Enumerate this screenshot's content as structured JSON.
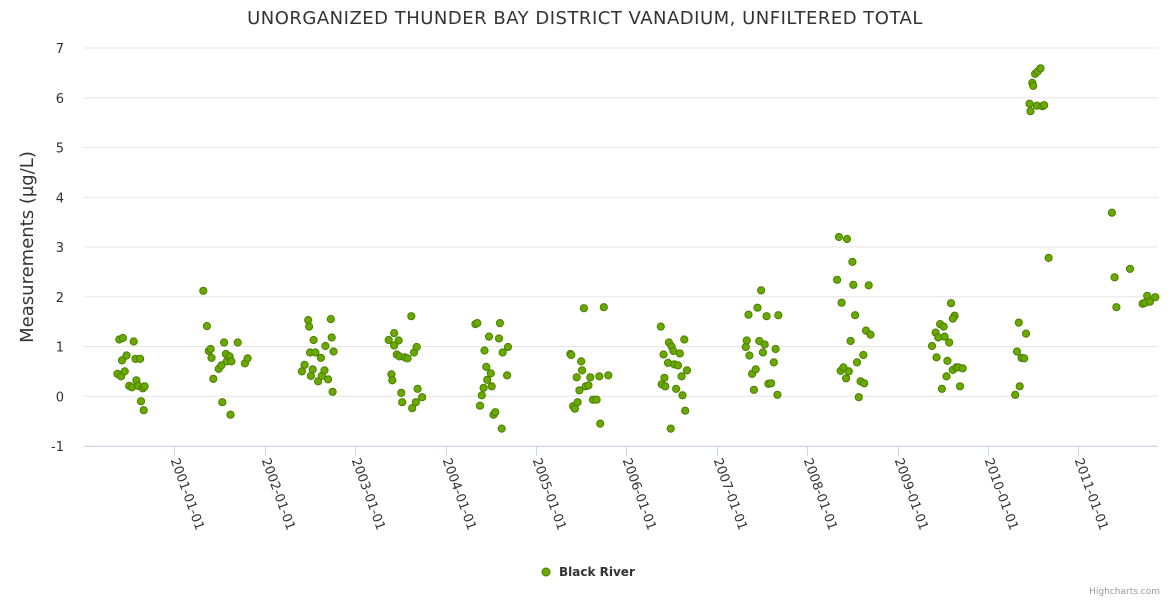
{
  "chart_data": {
    "type": "scatter",
    "title": "UNORGANIZED THUNDER BAY DISTRICT VANADIUM, UNFILTERED TOTAL",
    "xlabel": "",
    "ylabel": "Measurements (µg/L)",
    "ylim": [
      -1,
      7
    ],
    "y_ticks": [
      -1,
      0,
      1,
      2,
      3,
      4,
      5,
      6,
      7
    ],
    "xlim": [
      2000.0,
      2011.88
    ],
    "x_ticks": [
      {
        "value": 2001.0,
        "label": "2001-01-01"
      },
      {
        "value": 2002.0,
        "label": "2002-01-01"
      },
      {
        "value": 2003.0,
        "label": "2003-01-01"
      },
      {
        "value": 2004.0,
        "label": "2004-01-01"
      },
      {
        "value": 2005.0,
        "label": "2005-01-01"
      },
      {
        "value": 2006.0,
        "label": "2006-01-01"
      },
      {
        "value": 2007.0,
        "label": "2007-01-01"
      },
      {
        "value": 2008.0,
        "label": "2008-01-01"
      },
      {
        "value": 2009.0,
        "label": "2009-01-01"
      },
      {
        "value": 2010.0,
        "label": "2010-01-01"
      },
      {
        "value": 2011.0,
        "label": "2011-01-01"
      }
    ],
    "grid": true,
    "legend_position": "bottom-center",
    "series": [
      {
        "name": "Black River",
        "color": "#6aaa00",
        "edge_color": "#4a7f00",
        "points": [
          [
            2000.37,
            0.45
          ],
          [
            2000.39,
            1.14
          ],
          [
            2000.41,
            0.4
          ],
          [
            2000.42,
            0.72
          ],
          [
            2000.43,
            1.17
          ],
          [
            2000.45,
            0.5
          ],
          [
            2000.47,
            0.82
          ],
          [
            2000.5,
            0.21
          ],
          [
            2000.53,
            0.18
          ],
          [
            2000.55,
            1.1
          ],
          [
            2000.57,
            0.75
          ],
          [
            2000.58,
            0.32
          ],
          [
            2000.6,
            0.21
          ],
          [
            2000.62,
            0.75
          ],
          [
            2000.63,
            -0.1
          ],
          [
            2000.65,
            0.16
          ],
          [
            2000.66,
            -0.28
          ],
          [
            2000.67,
            0.2
          ],
          [
            2001.32,
            2.12
          ],
          [
            2001.36,
            1.41
          ],
          [
            2001.38,
            0.91
          ],
          [
            2001.4,
            0.95
          ],
          [
            2001.41,
            0.77
          ],
          [
            2001.43,
            0.35
          ],
          [
            2001.49,
            0.55
          ],
          [
            2001.52,
            0.62
          ],
          [
            2001.53,
            -0.12
          ],
          [
            2001.55,
            1.08
          ],
          [
            2001.57,
            0.85
          ],
          [
            2001.58,
            0.7
          ],
          [
            2001.61,
            0.8
          ],
          [
            2001.62,
            -0.37
          ],
          [
            2001.63,
            0.7
          ],
          [
            2001.7,
            1.08
          ],
          [
            2001.78,
            0.66
          ],
          [
            2001.81,
            0.76
          ],
          [
            2002.41,
            0.5
          ],
          [
            2002.44,
            0.63
          ],
          [
            2002.48,
            1.53
          ],
          [
            2002.49,
            1.4
          ],
          [
            2002.5,
            0.88
          ],
          [
            2002.51,
            0.41
          ],
          [
            2002.53,
            0.54
          ],
          [
            2002.54,
            1.13
          ],
          [
            2002.56,
            0.88
          ],
          [
            2002.59,
            0.3
          ],
          [
            2002.62,
            0.77
          ],
          [
            2002.63,
            0.41
          ],
          [
            2002.66,
            0.52
          ],
          [
            2002.67,
            1.01
          ],
          [
            2002.7,
            0.34
          ],
          [
            2002.73,
            1.55
          ],
          [
            2002.75,
            0.09
          ],
          [
            2002.76,
            0.9
          ],
          [
            2002.74,
            1.18
          ],
          [
            2003.37,
            1.13
          ],
          [
            2003.4,
            0.44
          ],
          [
            2003.41,
            0.32
          ],
          [
            2003.43,
            1.27
          ],
          [
            2003.46,
            0.84
          ],
          [
            2003.48,
            1.12
          ],
          [
            2003.49,
            0.8
          ],
          [
            2003.51,
            0.07
          ],
          [
            2003.52,
            -0.12
          ],
          [
            2003.55,
            0.78
          ],
          [
            2003.58,
            0.76
          ],
          [
            2003.62,
            1.61
          ],
          [
            2003.63,
            -0.24
          ],
          [
            2003.65,
            0.88
          ],
          [
            2003.67,
            -0.12
          ],
          [
            2003.68,
            0.99
          ],
          [
            2003.69,
            0.15
          ],
          [
            2003.74,
            -0.02
          ],
          [
            2003.43,
            1.02
          ],
          [
            2004.33,
            1.45
          ],
          [
            2004.35,
            1.47
          ],
          [
            2004.38,
            -0.19
          ],
          [
            2004.4,
            0.02
          ],
          [
            2004.42,
            0.17
          ],
          [
            2004.43,
            0.92
          ],
          [
            2004.45,
            0.59
          ],
          [
            2004.46,
            0.33
          ],
          [
            2004.48,
            1.2
          ],
          [
            2004.5,
            0.46
          ],
          [
            2004.51,
            0.2
          ],
          [
            2004.53,
            -0.37
          ],
          [
            2004.55,
            -0.32
          ],
          [
            2004.59,
            1.16
          ],
          [
            2004.6,
            1.47
          ],
          [
            2004.62,
            -0.65
          ],
          [
            2004.63,
            0.88
          ],
          [
            2004.68,
            0.42
          ],
          [
            2004.69,
            0.99
          ],
          [
            2005.38,
            0.85
          ],
          [
            2005.39,
            0.83
          ],
          [
            2005.41,
            -0.2
          ],
          [
            2005.43,
            -0.25
          ],
          [
            2005.45,
            0.38
          ],
          [
            2005.46,
            -0.12
          ],
          [
            2005.48,
            0.12
          ],
          [
            2005.5,
            0.7
          ],
          [
            2005.51,
            0.52
          ],
          [
            2005.53,
            1.77
          ],
          [
            2005.55,
            0.2
          ],
          [
            2005.58,
            0.22
          ],
          [
            2005.6,
            0.38
          ],
          [
            2005.63,
            -0.07
          ],
          [
            2005.67,
            -0.07
          ],
          [
            2005.7,
            0.4
          ],
          [
            2005.71,
            -0.55
          ],
          [
            2005.75,
            1.79
          ],
          [
            2005.8,
            0.42
          ],
          [
            2006.38,
            1.4
          ],
          [
            2006.39,
            0.24
          ],
          [
            2006.41,
            0.84
          ],
          [
            2006.42,
            0.37
          ],
          [
            2006.43,
            0.2
          ],
          [
            2006.46,
            0.67
          ],
          [
            2006.47,
            1.08
          ],
          [
            2006.49,
            -0.65
          ],
          [
            2006.5,
            1.0
          ],
          [
            2006.52,
            0.91
          ],
          [
            2006.53,
            0.64
          ],
          [
            2006.55,
            0.15
          ],
          [
            2006.57,
            0.62
          ],
          [
            2006.59,
            0.86
          ],
          [
            2006.61,
            0.4
          ],
          [
            2006.62,
            0.02
          ],
          [
            2006.64,
            1.14
          ],
          [
            2006.65,
            -0.29
          ],
          [
            2006.67,
            0.52
          ],
          [
            2007.32,
            0.99
          ],
          [
            2007.33,
            1.12
          ],
          [
            2007.35,
            1.64
          ],
          [
            2007.36,
            0.82
          ],
          [
            2007.39,
            0.45
          ],
          [
            2007.41,
            0.13
          ],
          [
            2007.43,
            0.54
          ],
          [
            2007.45,
            1.78
          ],
          [
            2007.47,
            1.11
          ],
          [
            2007.49,
            2.13
          ],
          [
            2007.51,
            0.88
          ],
          [
            2007.53,
            1.04
          ],
          [
            2007.55,
            1.61
          ],
          [
            2007.57,
            0.25
          ],
          [
            2007.6,
            0.26
          ],
          [
            2007.63,
            0.68
          ],
          [
            2007.65,
            0.95
          ],
          [
            2007.67,
            0.03
          ],
          [
            2007.68,
            1.63
          ],
          [
            2008.33,
            2.34
          ],
          [
            2008.35,
            3.2
          ],
          [
            2008.37,
            0.51
          ],
          [
            2008.38,
            1.88
          ],
          [
            2008.4,
            0.58
          ],
          [
            2008.43,
            0.36
          ],
          [
            2008.44,
            3.16
          ],
          [
            2008.46,
            0.5
          ],
          [
            2008.48,
            1.11
          ],
          [
            2008.5,
            2.7
          ],
          [
            2008.51,
            2.24
          ],
          [
            2008.53,
            1.63
          ],
          [
            2008.55,
            0.68
          ],
          [
            2008.57,
            -0.02
          ],
          [
            2008.59,
            0.3
          ],
          [
            2008.62,
            0.83
          ],
          [
            2008.63,
            0.26
          ],
          [
            2008.65,
            1.32
          ],
          [
            2008.68,
            2.23
          ],
          [
            2008.7,
            1.24
          ],
          [
            2009.38,
            1.01
          ],
          [
            2009.42,
            1.28
          ],
          [
            2009.43,
            0.78
          ],
          [
            2009.45,
            1.18
          ],
          [
            2009.47,
            1.45
          ],
          [
            2009.49,
            0.15
          ],
          [
            2009.51,
            1.4
          ],
          [
            2009.52,
            1.2
          ],
          [
            2009.54,
            0.4
          ],
          [
            2009.55,
            0.71
          ],
          [
            2009.57,
            1.08
          ],
          [
            2009.59,
            1.87
          ],
          [
            2009.61,
            0.53
          ],
          [
            2009.63,
            1.62
          ],
          [
            2009.65,
            0.58
          ],
          [
            2009.67,
            0.58
          ],
          [
            2009.69,
            0.2
          ],
          [
            2009.72,
            0.56
          ],
          [
            2009.61,
            1.56
          ],
          [
            2010.3,
            0.03
          ],
          [
            2010.32,
            0.9
          ],
          [
            2010.34,
            1.48
          ],
          [
            2010.35,
            0.2
          ],
          [
            2010.37,
            0.77
          ],
          [
            2010.4,
            0.76
          ],
          [
            2010.42,
            1.26
          ],
          [
            2010.46,
            5.88
          ],
          [
            2010.47,
            5.73
          ],
          [
            2010.49,
            6.3
          ],
          [
            2010.5,
            6.24
          ],
          [
            2010.52,
            6.48
          ],
          [
            2010.54,
            5.84
          ],
          [
            2010.55,
            6.53
          ],
          [
            2010.58,
            6.59
          ],
          [
            2010.6,
            5.83
          ],
          [
            2010.62,
            5.85
          ],
          [
            2010.67,
            2.78
          ],
          [
            2011.37,
            3.69
          ],
          [
            2011.4,
            2.39
          ],
          [
            2011.42,
            1.79
          ],
          [
            2011.57,
            2.56
          ],
          [
            2011.71,
            1.86
          ],
          [
            2011.74,
            1.88
          ],
          [
            2011.76,
            2.02
          ],
          [
            2011.79,
            1.9
          ],
          [
            2011.85,
            1.99
          ]
        ]
      }
    ]
  },
  "credits": "Highcharts.com"
}
